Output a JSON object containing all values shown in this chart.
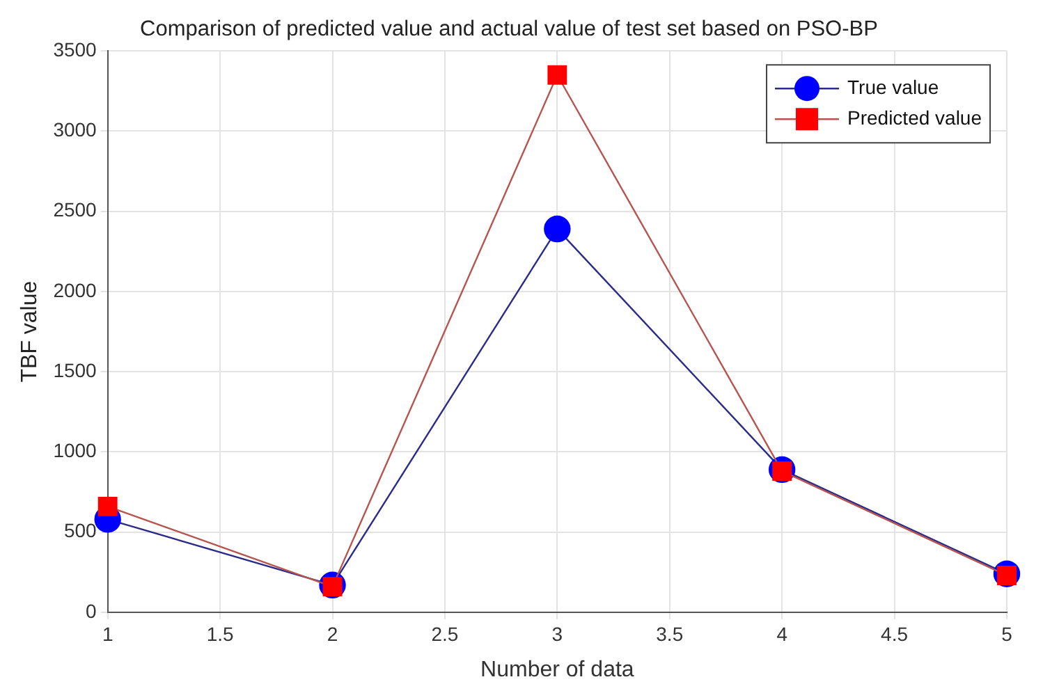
{
  "chart_data": {
    "type": "line",
    "title": "Comparison of predicted value and actual value of test set based on PSO-BP",
    "xlabel": "Number of data",
    "ylabel": "TBF value",
    "x": [
      1,
      2,
      3,
      4,
      5
    ],
    "series": [
      {
        "name": "True value",
        "color": "#0000ff",
        "values": [
          580,
          170,
          2390,
          890,
          240
        ],
        "marker": "circle"
      },
      {
        "name": "Predicted value",
        "color": "#ff0000",
        "values": [
          660,
          160,
          3350,
          880,
          230
        ],
        "marker": "square"
      }
    ],
    "xlim": [
      1,
      5
    ],
    "xticks": [
      1,
      1.5,
      2,
      2.5,
      3,
      3.5,
      4,
      4.5,
      5
    ],
    "ylim": [
      0,
      3500
    ],
    "yticks": [
      0,
      500,
      1000,
      1500,
      2000,
      2500,
      3000,
      3500
    ],
    "grid": true,
    "legend": "top right",
    "line_style": "solid"
  }
}
